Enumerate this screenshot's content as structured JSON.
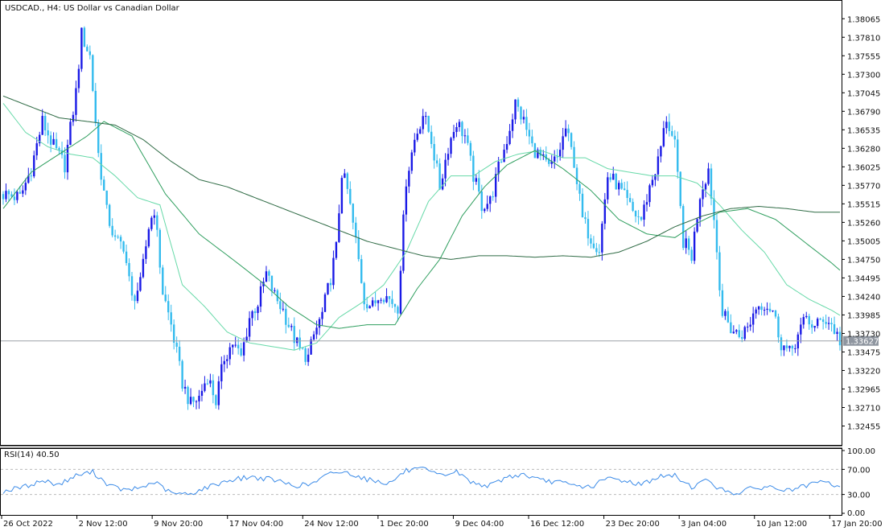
{
  "header": {
    "symbol": "USDCAD.",
    "timeframe": "H4",
    "description": "US Dollar vs Canadian Dollar",
    "title_separator": ", "
  },
  "indicator": {
    "label": "RSI(14)",
    "value": "40.50",
    "levels": [
      30,
      70
    ],
    "scale_labels": [
      "100.00",
      "70.00",
      "30.00",
      "0.00"
    ]
  },
  "colors": {
    "bull": "#1a1ae6",
    "bear": "#33bbee",
    "ma_fast": "#66d9a8",
    "ma_mid": "#2e9e5e",
    "ma_slow": "#2f6b45",
    "rsi": "#3b8be8",
    "price_line": "#9aa0a6",
    "price_tag": "#8f96a0",
    "axis": "#000000"
  },
  "chart_data": [
    {
      "type": "candlestick",
      "title": "USDCAD., H4:  US Dollar vs Canadian Dollar",
      "ylim": [
        1.3225,
        1.3819
      ],
      "y_ticks": [
        "1.38065",
        "1.37810",
        "1.37555",
        "1.37300",
        "1.37045",
        "1.36790",
        "1.36535",
        "1.36280",
        "1.36025",
        "1.35770",
        "1.35515",
        "1.35260",
        "1.35005",
        "1.34750",
        "1.34495",
        "1.34240",
        "1.33985",
        "1.33730",
        "1.33475",
        "1.33220",
        "1.32965",
        "1.32710",
        "1.32455"
      ],
      "x_ticks": [
        "26 Oct 2022",
        "2 Nov 12:00",
        "9 Nov 20:00",
        "17 Nov 04:00",
        "24 Nov 12:00",
        "1 Dec 20:00",
        "9 Dec 04:00",
        "16 Dec 12:00",
        "23 Dec 20:00",
        "3 Jan 04:00",
        "10 Jan 12:00",
        "17 Jan 20:00"
      ],
      "current_price": "1.33627",
      "anchors": [
        [
          0,
          1.3565
        ],
        [
          6,
          1.356
        ],
        [
          10,
          1.36
        ],
        [
          14,
          1.3665
        ],
        [
          18,
          1.363
        ],
        [
          22,
          1.3605
        ],
        [
          26,
          1.3705
        ],
        [
          28,
          1.3785
        ],
        [
          31,
          1.3755
        ],
        [
          34,
          1.362
        ],
        [
          37,
          1.354
        ],
        [
          40,
          1.35
        ],
        [
          43,
          1.3495
        ],
        [
          46,
          1.342
        ],
        [
          49,
          1.344
        ],
        [
          52,
          1.352
        ],
        [
          54,
          1.3545
        ],
        [
          57,
          1.343
        ],
        [
          60,
          1.3385
        ],
        [
          64,
          1.3305
        ],
        [
          67,
          1.3275
        ],
        [
          70,
          1.3285
        ],
        [
          73,
          1.3315
        ],
        [
          76,
          1.328
        ],
        [
          79,
          1.334
        ],
        [
          82,
          1.336
        ],
        [
          85,
          1.334
        ],
        [
          88,
          1.3395
        ],
        [
          91,
          1.3415
        ],
        [
          94,
          1.3455
        ],
        [
          97,
          1.3425
        ],
        [
          100,
          1.3405
        ],
        [
          103,
          1.3375
        ],
        [
          106,
          1.335
        ],
        [
          109,
          1.334
        ],
        [
          111,
          1.337
        ],
        [
          114,
          1.34
        ],
        [
          117,
          1.345
        ],
        [
          119,
          1.349
        ],
        [
          121,
          1.3595
        ],
        [
          123,
          1.357
        ],
        [
          126,
          1.35
        ],
        [
          129,
          1.342
        ],
        [
          132,
          1.341
        ],
        [
          135,
          1.343
        ],
        [
          138,
          1.342
        ],
        [
          141,
          1.341
        ],
        [
          144,
          1.3585
        ],
        [
          147,
          1.364
        ],
        [
          150,
          1.3675
        ],
        [
          153,
          1.364
        ],
        [
          156,
          1.3575
        ],
        [
          159,
          1.363
        ],
        [
          162,
          1.3665
        ],
        [
          165,
          1.3645
        ],
        [
          168,
          1.359
        ],
        [
          171,
          1.355
        ],
        [
          174,
          1.3555
        ],
        [
          177,
          1.36
        ],
        [
          180,
          1.364
        ],
        [
          183,
          1.369
        ],
        [
          186,
          1.3665
        ],
        [
          189,
          1.363
        ],
        [
          192,
          1.3615
        ],
        [
          195,
          1.36
        ],
        [
          198,
          1.3615
        ],
        [
          201,
          1.3655
        ],
        [
          204,
          1.361
        ],
        [
          207,
          1.353
        ],
        [
          210,
          1.3505
        ],
        [
          213,
          1.349
        ],
        [
          216,
          1.359
        ],
        [
          219,
          1.358
        ],
        [
          222,
          1.356
        ],
        [
          225,
          1.354
        ],
        [
          228,
          1.353
        ],
        [
          231,
          1.3575
        ],
        [
          234,
          1.361
        ],
        [
          237,
          1.367
        ],
        [
          240,
          1.363
        ],
        [
          243,
          1.35
        ],
        [
          246,
          1.348
        ],
        [
          249,
          1.3565
        ],
        [
          252,
          1.36
        ],
        [
          254,
          1.353
        ],
        [
          257,
          1.34
        ],
        [
          260,
          1.338
        ],
        [
          263,
          1.337
        ],
        [
          266,
          1.338
        ],
        [
          269,
          1.341
        ],
        [
          272,
          1.3415
        ],
        [
          275,
          1.3405
        ],
        [
          278,
          1.336
        ],
        [
          281,
          1.3345
        ],
        [
          284,
          1.337
        ],
        [
          287,
          1.3395
        ],
        [
          290,
          1.338
        ],
        [
          293,
          1.3395
        ],
        [
          296,
          1.3385
        ],
        [
          299,
          1.3363
        ]
      ],
      "moving_averages": [
        {
          "length": 20,
          "anchors": [
            [
              0,
              1.369
            ],
            [
              8,
              1.365
            ],
            [
              16,
              1.363
            ],
            [
              24,
              1.362
            ],
            [
              32,
              1.3615
            ],
            [
              40,
              1.359
            ],
            [
              48,
              1.356
            ],
            [
              56,
              1.355
            ],
            [
              64,
              1.344
            ],
            [
              72,
              1.341
            ],
            [
              80,
              1.3375
            ],
            [
              88,
              1.336
            ],
            [
              96,
              1.3355
            ],
            [
              104,
              1.335
            ],
            [
              112,
              1.336
            ],
            [
              120,
              1.3395
            ],
            [
              128,
              1.3415
            ],
            [
              136,
              1.344
            ],
            [
              144,
              1.3485
            ],
            [
              152,
              1.3555
            ],
            [
              160,
              1.359
            ],
            [
              168,
              1.359
            ],
            [
              176,
              1.361
            ],
            [
              184,
              1.362
            ],
            [
              192,
              1.3625
            ],
            [
              200,
              1.3615
            ],
            [
              208,
              1.3615
            ],
            [
              216,
              1.36
            ],
            [
              224,
              1.3595
            ],
            [
              232,
              1.359
            ],
            [
              240,
              1.359
            ],
            [
              248,
              1.358
            ],
            [
              256,
              1.355
            ],
            [
              264,
              1.3515
            ],
            [
              272,
              1.3485
            ],
            [
              280,
              1.344
            ],
            [
              288,
              1.342
            ],
            [
              296,
              1.3405
            ],
            [
              299,
              1.3398
            ]
          ]
        },
        {
          "length": 50,
          "anchors": [
            [
              0,
              1.3545
            ],
            [
              10,
              1.3595
            ],
            [
              20,
              1.362
            ],
            [
              30,
              1.3645
            ],
            [
              36,
              1.3665
            ],
            [
              46,
              1.3645
            ],
            [
              58,
              1.3565
            ],
            [
              70,
              1.351
            ],
            [
              82,
              1.3475
            ],
            [
              92,
              1.3445
            ],
            [
              102,
              1.341
            ],
            [
              112,
              1.3385
            ],
            [
              120,
              1.338
            ],
            [
              130,
              1.3385
            ],
            [
              140,
              1.3385
            ],
            [
              148,
              1.3435
            ],
            [
              156,
              1.3475
            ],
            [
              164,
              1.3535
            ],
            [
              172,
              1.3575
            ],
            [
              180,
              1.3605
            ],
            [
              190,
              1.3625
            ],
            [
              200,
              1.36
            ],
            [
              210,
              1.357
            ],
            [
              220,
              1.353
            ],
            [
              230,
              1.351
            ],
            [
              240,
              1.3505
            ],
            [
              248,
              1.3525
            ],
            [
              256,
              1.354
            ],
            [
              266,
              1.3545
            ],
            [
              276,
              1.353
            ],
            [
              286,
              1.35
            ],
            [
              296,
              1.347
            ],
            [
              299,
              1.346
            ]
          ]
        },
        {
          "length": 200,
          "anchors": [
            [
              0,
              1.37
            ],
            [
              10,
              1.3685
            ],
            [
              20,
              1.367
            ],
            [
              30,
              1.3665
            ],
            [
              40,
              1.366
            ],
            [
              50,
              1.364
            ],
            [
              60,
              1.361
            ],
            [
              70,
              1.3585
            ],
            [
              80,
              1.3575
            ],
            [
              90,
              1.356
            ],
            [
              100,
              1.3545
            ],
            [
              110,
              1.353
            ],
            [
              120,
              1.3515
            ],
            [
              130,
              1.35
            ],
            [
              140,
              1.349
            ],
            [
              150,
              1.348
            ],
            [
              160,
              1.3475
            ],
            [
              170,
              1.348
            ],
            [
              180,
              1.348
            ],
            [
              190,
              1.3478
            ],
            [
              200,
              1.348
            ],
            [
              210,
              1.3478
            ],
            [
              220,
              1.3485
            ],
            [
              230,
              1.35
            ],
            [
              240,
              1.352
            ],
            [
              250,
              1.3535
            ],
            [
              260,
              1.3545
            ],
            [
              270,
              1.3548
            ],
            [
              280,
              1.3545
            ],
            [
              290,
              1.354
            ],
            [
              299,
              1.354
            ]
          ]
        }
      ]
    },
    {
      "type": "line",
      "title": "RSI(14) 40.50",
      "ylim": [
        0,
        100
      ],
      "levels": [
        30,
        70
      ],
      "y_ticks": [
        "100.00",
        "70.00",
        "30.00",
        "0.00"
      ],
      "anchors": [
        [
          0,
          35
        ],
        [
          8,
          43
        ],
        [
          14,
          52
        ],
        [
          20,
          46
        ],
        [
          26,
          60
        ],
        [
          32,
          66
        ],
        [
          38,
          44
        ],
        [
          44,
          36
        ],
        [
          50,
          42
        ],
        [
          54,
          50
        ],
        [
          60,
          32
        ],
        [
          66,
          30
        ],
        [
          72,
          40
        ],
        [
          80,
          52
        ],
        [
          88,
          58
        ],
        [
          96,
          54
        ],
        [
          104,
          44
        ],
        [
          110,
          46
        ],
        [
          118,
          66
        ],
        [
          124,
          64
        ],
        [
          130,
          54
        ],
        [
          138,
          48
        ],
        [
          144,
          68
        ],
        [
          150,
          70
        ],
        [
          156,
          60
        ],
        [
          162,
          66
        ],
        [
          168,
          48
        ],
        [
          174,
          44
        ],
        [
          180,
          58
        ],
        [
          186,
          62
        ],
        [
          192,
          52
        ],
        [
          198,
          50
        ],
        [
          204,
          44
        ],
        [
          210,
          42
        ],
        [
          216,
          56
        ],
        [
          222,
          52
        ],
        [
          228,
          46
        ],
        [
          234,
          58
        ],
        [
          240,
          60
        ],
        [
          246,
          42
        ],
        [
          252,
          54
        ],
        [
          256,
          38
        ],
        [
          262,
          32
        ],
        [
          268,
          40
        ],
        [
          274,
          42
        ],
        [
          280,
          36
        ],
        [
          286,
          42
        ],
        [
          292,
          50
        ],
        [
          296,
          47
        ],
        [
          299,
          40.5
        ]
      ]
    }
  ]
}
